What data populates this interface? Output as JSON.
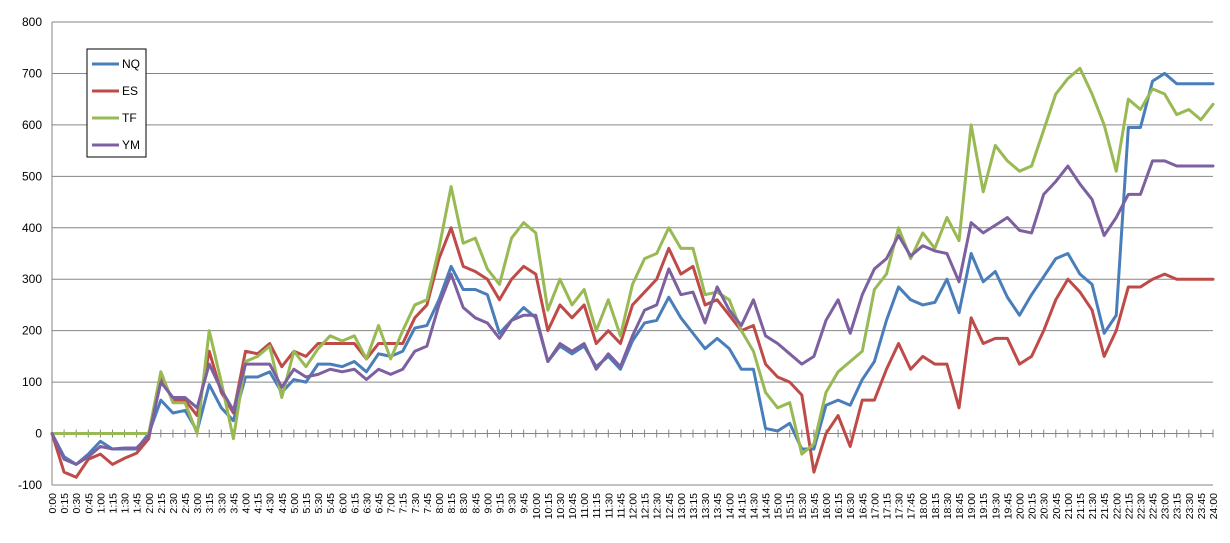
{
  "chart_data": {
    "type": "line",
    "title": "",
    "xlabel": "",
    "ylabel": "",
    "ylim": [
      -100,
      800
    ],
    "yticks": [
      -100,
      0,
      100,
      200,
      300,
      400,
      500,
      600,
      700,
      800
    ],
    "grid": "horizontal",
    "legend_position": "top-left",
    "x": [
      "0:00",
      "0:15",
      "0:30",
      "0:45",
      "1:00",
      "1:15",
      "1:30",
      "1:45",
      "2:00",
      "2:15",
      "2:30",
      "2:45",
      "3:00",
      "3:15",
      "3:30",
      "3:45",
      "4:00",
      "4:15",
      "4:30",
      "4:45",
      "5:00",
      "5:15",
      "5:30",
      "5:45",
      "6:00",
      "6:15",
      "6:30",
      "6:45",
      "7:00",
      "7:15",
      "7:30",
      "7:45",
      "8:00",
      "8:15",
      "8:30",
      "8:45",
      "9:00",
      "9:15",
      "9:30",
      "9:45",
      "10:00",
      "10:15",
      "10:30",
      "10:45",
      "11:00",
      "11:15",
      "11:30",
      "11:45",
      "12:00",
      "12:15",
      "12:30",
      "12:45",
      "13:00",
      "13:15",
      "13:30",
      "13:45",
      "14:00",
      "14:15",
      "14:30",
      "14:45",
      "15:00",
      "15:15",
      "15:30",
      "15:45",
      "16:00",
      "16:15",
      "16:30",
      "16:45",
      "17:00",
      "17:15",
      "17:30",
      "17:45",
      "18:00",
      "18:15",
      "18:30",
      "18:45",
      "19:00",
      "19:15",
      "19:30",
      "19:45",
      "20:00",
      "20:15",
      "20:30",
      "20:45",
      "21:00",
      "21:15",
      "21:30",
      "21:45",
      "22:00",
      "22:15",
      "22:30",
      "22:45",
      "23:00",
      "23:15",
      "23:30",
      "23:45",
      "24:00"
    ],
    "series": [
      {
        "name": "NQ",
        "color": "#4a7ebb",
        "values": [
          0,
          -45,
          -60,
          -40,
          -15,
          -30,
          -30,
          -30,
          0,
          65,
          40,
          45,
          5,
          95,
          50,
          25,
          110,
          110,
          120,
          80,
          105,
          100,
          135,
          135,
          130,
          140,
          120,
          155,
          150,
          160,
          205,
          210,
          260,
          325,
          280,
          280,
          270,
          195,
          220,
          245,
          225,
          140,
          170,
          155,
          170,
          130,
          150,
          125,
          180,
          215,
          220,
          265,
          225,
          195,
          165,
          185,
          165,
          125,
          125,
          10,
          5,
          20,
          -30,
          -30,
          55,
          65,
          55,
          105,
          140,
          220,
          285,
          260,
          250,
          255,
          300,
          235,
          350,
          295,
          315,
          265,
          230,
          270,
          305,
          340,
          350,
          310,
          290,
          195,
          230,
          595,
          595,
          685,
          700,
          680,
          680,
          680,
          680
        ]
      },
      {
        "name": "ES",
        "color": "#be4b48",
        "values": [
          0,
          -75,
          -85,
          -50,
          -40,
          -60,
          -48,
          -38,
          -10,
          110,
          65,
          65,
          35,
          160,
          80,
          40,
          160,
          155,
          175,
          130,
          160,
          150,
          175,
          175,
          175,
          175,
          145,
          175,
          175,
          175,
          225,
          250,
          340,
          400,
          325,
          315,
          300,
          260,
          300,
          325,
          310,
          200,
          250,
          225,
          250,
          175,
          200,
          175,
          250,
          275,
          300,
          360,
          310,
          325,
          250,
          260,
          230,
          200,
          210,
          135,
          110,
          100,
          75,
          -75,
          0,
          35,
          -25,
          65,
          65,
          125,
          175,
          125,
          150,
          135,
          135,
          50,
          225,
          175,
          185,
          185,
          135,
          150,
          200,
          260,
          300,
          275,
          240,
          150,
          200,
          285,
          285,
          300,
          310,
          300,
          300,
          300,
          300
        ]
      },
      {
        "name": "TF",
        "color": "#98b954",
        "values": [
          0,
          0,
          0,
          0,
          0,
          0,
          0,
          0,
          0,
          120,
          60,
          60,
          0,
          200,
          100,
          -10,
          140,
          150,
          170,
          70,
          160,
          130,
          165,
          190,
          180,
          190,
          145,
          210,
          145,
          200,
          250,
          260,
          360,
          480,
          370,
          380,
          320,
          290,
          380,
          410,
          390,
          240,
          300,
          250,
          280,
          200,
          260,
          190,
          290,
          340,
          350,
          400,
          360,
          360,
          270,
          275,
          260,
          200,
          160,
          80,
          50,
          60,
          -40,
          -20,
          80,
          120,
          140,
          160,
          280,
          310,
          400,
          340,
          390,
          360,
          420,
          375,
          600,
          470,
          560,
          530,
          510,
          520,
          590,
          660,
          690,
          710,
          660,
          600,
          510,
          650,
          630,
          670,
          660,
          620,
          630,
          610,
          640
        ]
      },
      {
        "name": "YM",
        "color": "#7d60a0",
        "values": [
          0,
          -50,
          -60,
          -45,
          -25,
          -30,
          -28,
          -28,
          -5,
          100,
          70,
          70,
          50,
          135,
          85,
          45,
          135,
          135,
          135,
          90,
          125,
          110,
          115,
          125,
          120,
          125,
          105,
          125,
          115,
          125,
          160,
          170,
          250,
          310,
          245,
          225,
          215,
          185,
          220,
          230,
          230,
          140,
          175,
          160,
          175,
          125,
          155,
          130,
          190,
          240,
          250,
          320,
          270,
          275,
          215,
          285,
          240,
          210,
          260,
          190,
          175,
          155,
          135,
          150,
          220,
          260,
          195,
          270,
          320,
          340,
          385,
          345,
          365,
          355,
          350,
          295,
          410,
          390,
          405,
          420,
          395,
          390,
          465,
          490,
          520,
          485,
          455,
          385,
          420,
          465,
          465,
          530,
          530,
          520,
          520,
          520,
          520
        ]
      }
    ]
  }
}
